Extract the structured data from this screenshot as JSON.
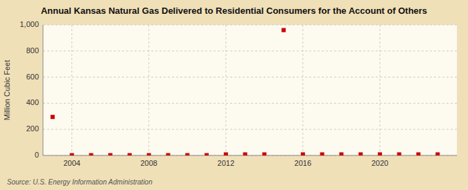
{
  "chart_data": {
    "type": "scatter",
    "title": "Annual Kansas Natural Gas Delivered to Residential Consumers for the Account of Others",
    "ylabel": "Million Cubic Feet",
    "source": "Source: U.S. Energy Information Administration",
    "x": [
      2003,
      2004,
      2005,
      2006,
      2007,
      2008,
      2009,
      2010,
      2011,
      2012,
      2013,
      2014,
      2015,
      2016,
      2017,
      2018,
      2019,
      2020,
      2021,
      2022,
      2023
    ],
    "values": [
      295,
      2,
      2,
      2,
      2,
      2,
      2,
      2,
      2,
      8,
      8,
      8,
      960,
      8,
      8,
      8,
      8,
      8,
      8,
      8,
      8
    ],
    "color": "#cc0000",
    "marker": "square",
    "xlim": [
      2002.5,
      2024
    ],
    "ylim": [
      0,
      1000
    ],
    "xticks": [
      2004,
      2008,
      2012,
      2016,
      2020
    ],
    "yticks": [
      0,
      200,
      400,
      600,
      800,
      {
        "value": 1000,
        "label": "1,000"
      }
    ],
    "grid": true
  }
}
